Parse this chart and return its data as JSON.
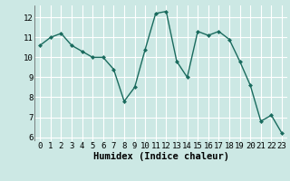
{
  "x": [
    0,
    1,
    2,
    3,
    4,
    5,
    6,
    7,
    8,
    9,
    10,
    11,
    12,
    13,
    14,
    15,
    16,
    17,
    18,
    19,
    20,
    21,
    22,
    23
  ],
  "y": [
    10.6,
    11.0,
    11.2,
    10.6,
    10.3,
    10.0,
    10.0,
    9.4,
    7.8,
    8.5,
    10.4,
    12.2,
    12.3,
    9.8,
    9.0,
    11.3,
    11.1,
    11.3,
    10.9,
    9.8,
    8.6,
    6.8,
    7.1,
    6.2
  ],
  "line_color": "#1a6b5e",
  "marker": "D",
  "marker_size": 2.0,
  "xlabel": "Humidex (Indice chaleur)",
  "xlim": [
    -0.5,
    23.5
  ],
  "ylim": [
    5.8,
    12.6
  ],
  "yticks": [
    6,
    7,
    8,
    9,
    10,
    11,
    12
  ],
  "xticks": [
    0,
    1,
    2,
    3,
    4,
    5,
    6,
    7,
    8,
    9,
    10,
    11,
    12,
    13,
    14,
    15,
    16,
    17,
    18,
    19,
    20,
    21,
    22,
    23
  ],
  "bg_color": "#cce8e4",
  "grid_color": "#ffffff",
  "xlabel_fontsize": 7.5,
  "tick_fontsize": 6.5,
  "linewidth": 1.0
}
